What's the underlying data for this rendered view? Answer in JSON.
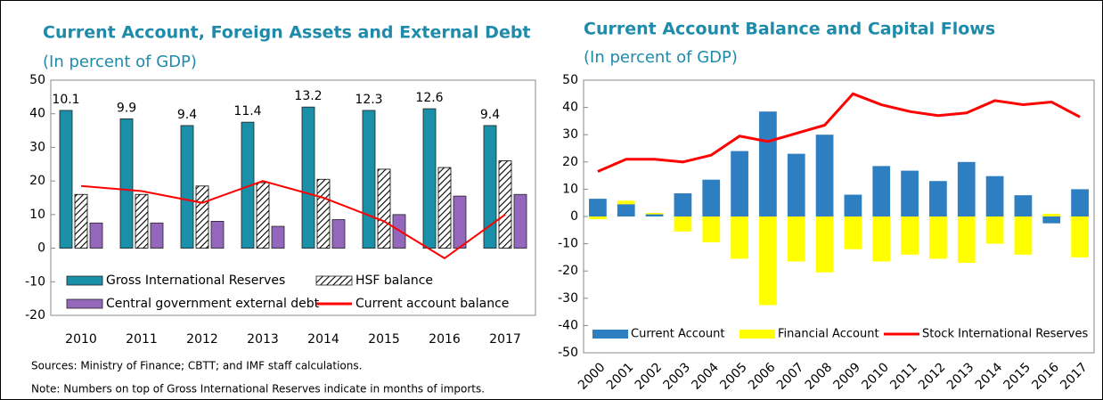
{
  "chart_data": [
    {
      "type": "grouped_bar",
      "title": "Current Account, Foreign Assets and External Debt",
      "subtitle": "(In percent of GDP)",
      "categories": [
        "2010",
        "2011",
        "2012",
        "2013",
        "2014",
        "2015",
        "2016",
        "2017"
      ],
      "series": [
        {
          "name": "Gross International Reserves",
          "kind": "bar",
          "color": "#1a8fa8",
          "values": [
            41,
            38.5,
            36.5,
            37.5,
            42,
            41,
            41.5,
            36.5
          ],
          "top_labels": [
            10.1,
            9.9,
            9.4,
            11.4,
            13.2,
            12.3,
            12.6,
            9.4
          ]
        },
        {
          "name": "HSF balance",
          "kind": "bar",
          "pattern": "hatch",
          "color": "#000000",
          "values": [
            16,
            16,
            18.5,
            19.5,
            20.5,
            23.5,
            24,
            26
          ]
        },
        {
          "name": "Central government external debt",
          "kind": "bar",
          "color": "#9467bd",
          "values": [
            7.5,
            7.5,
            8,
            6.5,
            8.5,
            10,
            15.5,
            16
          ]
        },
        {
          "name": "Current account balance",
          "kind": "line",
          "color": "#ff0000",
          "values": [
            18.5,
            17,
            13.5,
            20,
            15,
            8,
            -3,
            10
          ]
        }
      ],
      "ylim": [
        -20,
        50
      ],
      "yticks": [
        -20,
        -10,
        0,
        10,
        20,
        30,
        40,
        50
      ],
      "grid": false,
      "notes": [
        "Sources: Ministry of Finance; CBTT; and IMF staff calculations.",
        "Note: Numbers on top of Gross International Reserves  indicate in months of imports."
      ]
    },
    {
      "type": "stacked_bar",
      "title": "Current Account Balance and Capital Flows",
      "subtitle": "(In percent of GDP)",
      "categories": [
        "2000",
        "2001",
        "2002",
        "2003",
        "2004",
        "2005",
        "2006",
        "2007",
        "2008",
        "2009",
        "2010",
        "2011",
        "2012",
        "2013",
        "2014",
        "2015",
        "2016",
        "2017"
      ],
      "series": [
        {
          "name": "Current Account",
          "kind": "bar",
          "color": "#2e7fc1",
          "values": [
            6.5,
            4.5,
            0.8,
            8.5,
            13.5,
            24,
            38.5,
            23,
            30,
            8,
            18.5,
            16.8,
            13,
            20,
            14.8,
            7.8,
            -2.5,
            10
          ]
        },
        {
          "name": "Financial Account",
          "kind": "bar",
          "color": "#ffff00",
          "values": [
            -1,
            1.3,
            0.5,
            -5.5,
            -9.5,
            -15.5,
            -32.5,
            -16.5,
            -20.5,
            -12,
            -16.5,
            -14,
            -15.5,
            -17,
            -10,
            -14,
            1,
            -15
          ]
        },
        {
          "name": "Stock International Reserves",
          "kind": "line",
          "color": "#ff0000",
          "values": [
            16.5,
            21,
            21,
            20,
            22.5,
            29.5,
            27.5,
            30.5,
            33.5,
            45,
            41,
            38.5,
            37,
            38,
            42.5,
            41,
            42,
            36.5
          ]
        }
      ],
      "ylim": [
        -50,
        50
      ],
      "yticks": [
        -50,
        -40,
        -30,
        -20,
        -10,
        0,
        10,
        20,
        30,
        40,
        50
      ],
      "grid": false
    }
  ]
}
